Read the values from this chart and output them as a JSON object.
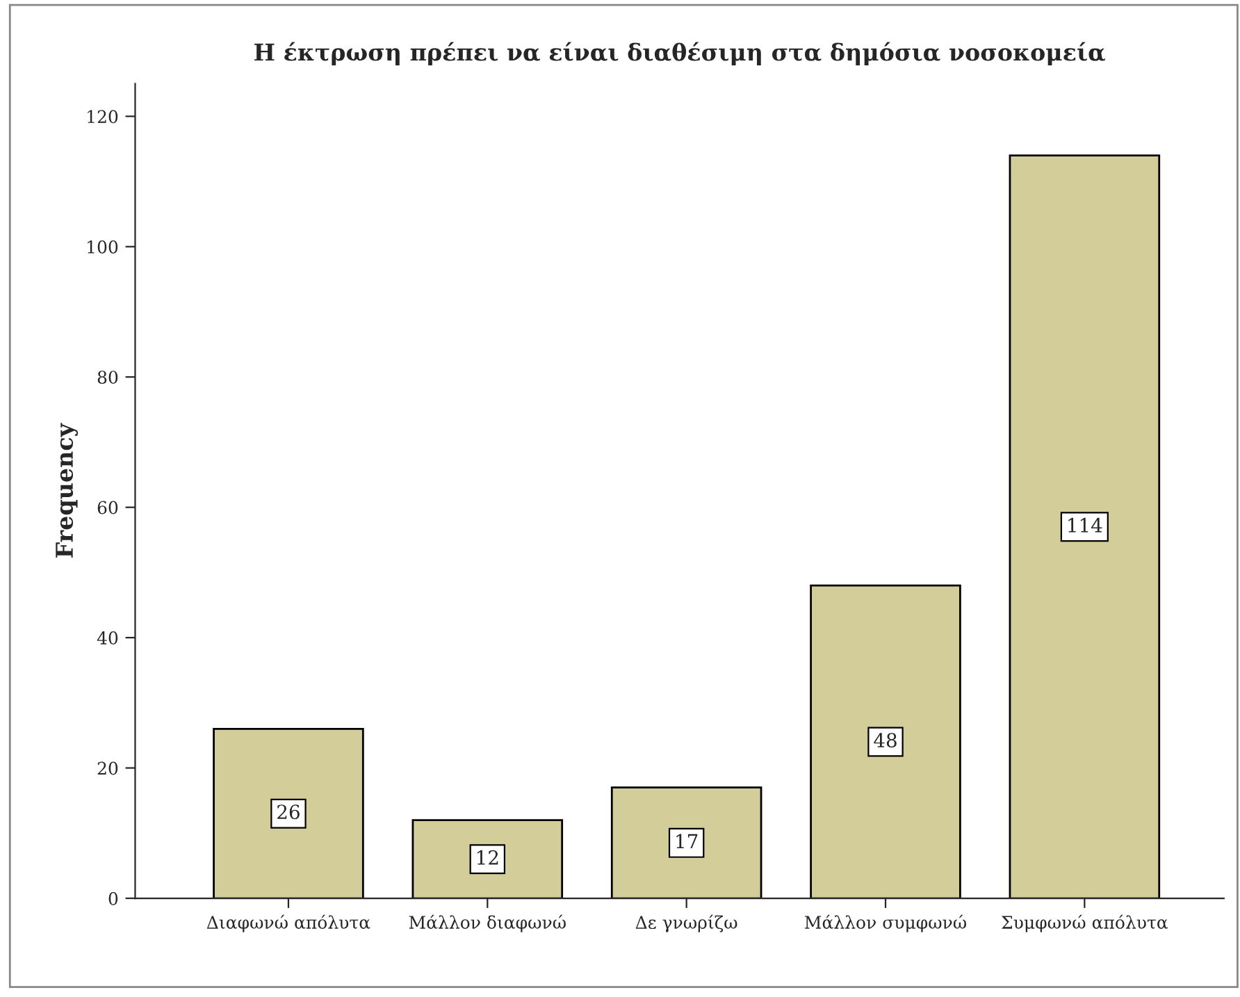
{
  "chart_data": {
    "type": "bar",
    "title": "Η έκτρωση πρέπει να είναι διαθέσιμη στα δημόσια νοσοκομεία",
    "ylabel": "Frequency",
    "categories": [
      "Διαφωνώ απόλυτα",
      "Μάλλον διαφωνώ",
      "Δε γνωρίζω",
      "Μάλλον συμφωνώ",
      "Συμφωνώ απόλυτα"
    ],
    "values": [
      26,
      12,
      17,
      48,
      114
    ],
    "color": "#d3ce99",
    "ylim": [
      0,
      125
    ],
    "yticks": [
      0,
      20,
      40,
      60,
      80,
      100,
      120
    ],
    "grid": false,
    "data_labels": true,
    "legend": false
  }
}
